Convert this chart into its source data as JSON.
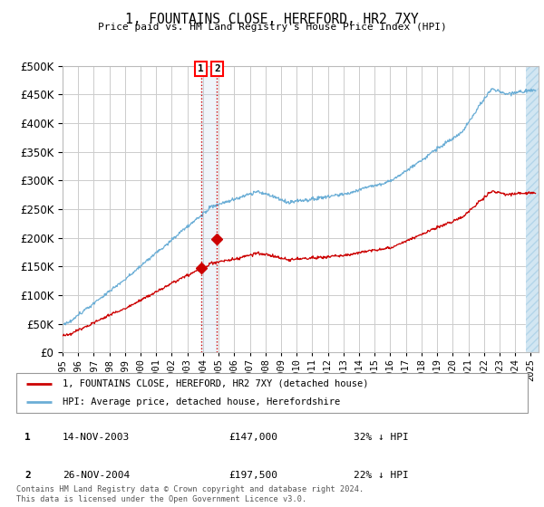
{
  "title": "1, FOUNTAINS CLOSE, HEREFORD, HR2 7XY",
  "subtitle": "Price paid vs. HM Land Registry's House Price Index (HPI)",
  "ylim": [
    0,
    500000
  ],
  "yticks": [
    0,
    50000,
    100000,
    150000,
    200000,
    250000,
    300000,
    350000,
    400000,
    450000,
    500000
  ],
  "xlim_start": 1995.0,
  "xlim_end": 2025.5,
  "hpi_color": "#6baed6",
  "price_color": "#cc0000",
  "transaction1_date": 2003.87,
  "transaction1_price": 147000,
  "transaction2_date": 2004.9,
  "transaction2_price": 197500,
  "vline_color": "#cc0000",
  "shade_color": "#c6dbef",
  "marker_color": "#cc0000",
  "legend_label_red": "1, FOUNTAINS CLOSE, HEREFORD, HR2 7XY (detached house)",
  "legend_label_blue": "HPI: Average price, detached house, Herefordshire",
  "table_row1": [
    "1",
    "14-NOV-2003",
    "£147,000",
    "32% ↓ HPI"
  ],
  "table_row2": [
    "2",
    "26-NOV-2004",
    "£197,500",
    "22% ↓ HPI"
  ],
  "footer": "Contains HM Land Registry data © Crown copyright and database right 2024.\nThis data is licensed under the Open Government Licence v3.0.",
  "background_color": "#ffffff",
  "grid_color": "#cccccc"
}
